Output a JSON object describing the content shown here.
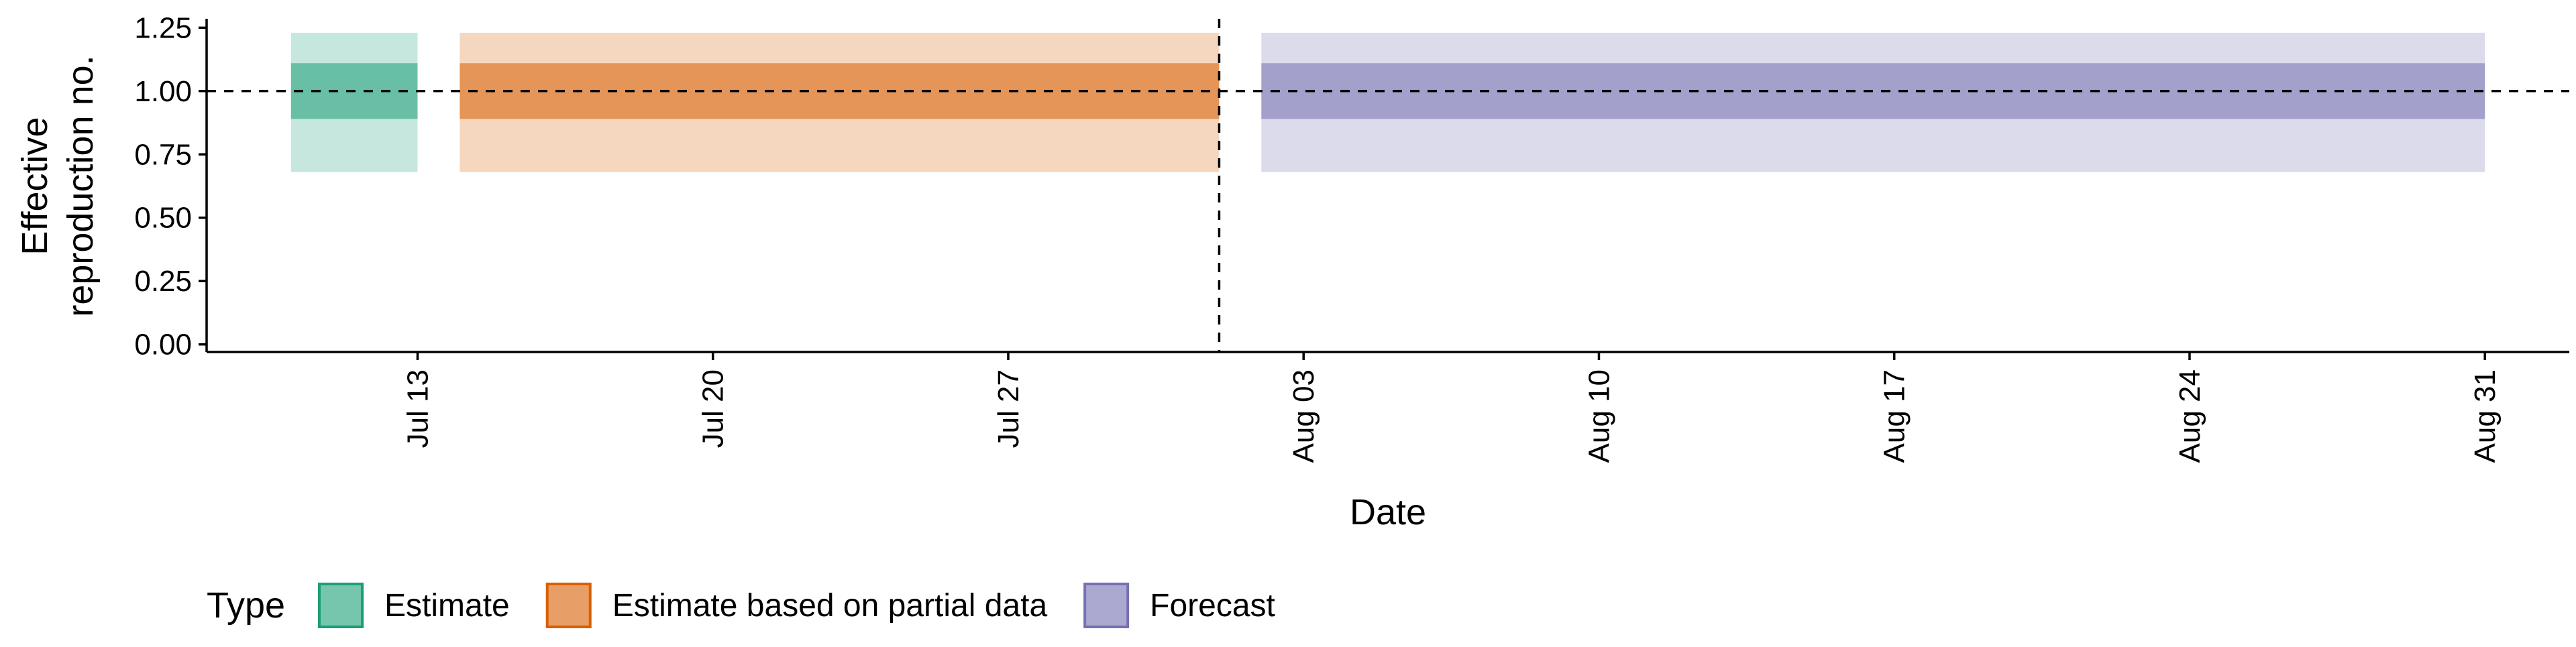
{
  "chart_data": {
    "type": "area",
    "xlabel": "Date",
    "ylabel": "Effective\nreproduction no.",
    "x_ticks": [
      "Jul 13",
      "Jul 20",
      "Jul 27",
      "Aug 03",
      "Aug 10",
      "Aug 17",
      "Aug 24",
      "Aug 31"
    ],
    "x_tick_dates": [
      "2020-07-13",
      "2020-07-20",
      "2020-07-27",
      "2020-08-03",
      "2020-08-10",
      "2020-08-17",
      "2020-08-24",
      "2020-08-31"
    ],
    "xlim": [
      "2020-07-08",
      "2020-09-02"
    ],
    "y_ticks": [
      "0.00",
      "0.25",
      "0.50",
      "0.75",
      "1.00",
      "1.25"
    ],
    "ylim": [
      -0.03,
      1.28
    ],
    "reference_hline": 1.0,
    "reference_vline_date": "2020-08-01",
    "legend": {
      "title": "Type",
      "position": "bottom"
    },
    "series": [
      {
        "name": "Estimate",
        "color": "#1B9E77",
        "x_start": "2020-07-10",
        "x_end": "2020-07-13",
        "median": 1.0,
        "lower_50": 0.89,
        "upper_50": 1.11,
        "lower_90": 0.68,
        "upper_90": 1.23
      },
      {
        "name": "Estimate based on partial data",
        "color": "#D95F02",
        "x_start": "2020-07-14",
        "x_end": "2020-08-01",
        "median": 1.0,
        "lower_50": 0.89,
        "upper_50": 1.11,
        "lower_90": 0.68,
        "upper_90": 1.23
      },
      {
        "name": "Forecast",
        "color": "#7570B3",
        "x_start": "2020-08-02",
        "x_end": "2020-08-31",
        "median": 1.0,
        "lower_50": 0.89,
        "upper_50": 1.11,
        "lower_90": 0.68,
        "upper_90": 1.23
      }
    ]
  }
}
